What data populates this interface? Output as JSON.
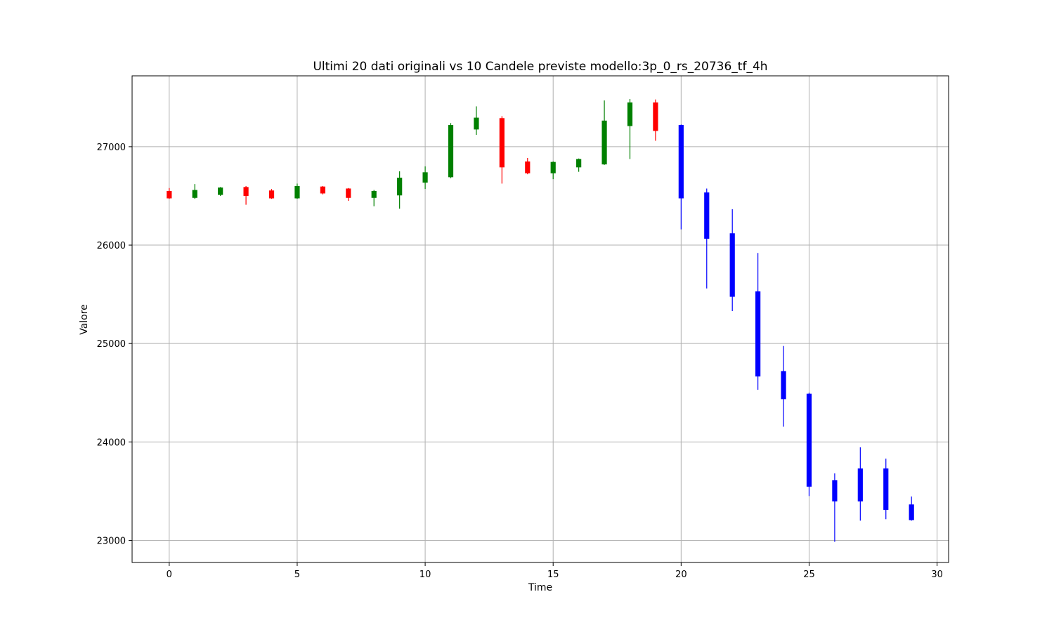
{
  "chart_data": {
    "type": "candlestick",
    "title": "Ultimi 20 dati originali vs 10 Candele previste modello:3p_0_rs_20736_tf_4h",
    "xlabel": "Time",
    "ylabel": "Valore",
    "xlim": [
      -1.45,
      30.45
    ],
    "ylim": [
      22775,
      27720
    ],
    "x_ticks": [
      0,
      5,
      10,
      15,
      20,
      25,
      30
    ],
    "y_ticks": [
      23000,
      24000,
      25000,
      26000,
      27000
    ],
    "grid": true,
    "colors": {
      "up": "#008000",
      "down": "#ff0000",
      "forecast": "#0000ff"
    },
    "candles": [
      {
        "x": 0,
        "open": 26550,
        "high": 26580,
        "low": 26470,
        "close": 26475,
        "series": "original"
      },
      {
        "x": 1,
        "open": 26480,
        "high": 26620,
        "low": 26470,
        "close": 26560,
        "series": "original"
      },
      {
        "x": 2,
        "open": 26510,
        "high": 26590,
        "low": 26500,
        "close": 26585,
        "series": "original"
      },
      {
        "x": 3,
        "open": 26590,
        "high": 26600,
        "low": 26410,
        "close": 26500,
        "series": "original"
      },
      {
        "x": 4,
        "open": 26555,
        "high": 26570,
        "low": 26470,
        "close": 26475,
        "series": "original"
      },
      {
        "x": 5,
        "open": 26475,
        "high": 26625,
        "low": 26470,
        "close": 26600,
        "series": "original"
      },
      {
        "x": 6,
        "open": 26595,
        "high": 26600,
        "low": 26515,
        "close": 26525,
        "series": "original"
      },
      {
        "x": 7,
        "open": 26575,
        "high": 26580,
        "low": 26450,
        "close": 26480,
        "series": "original"
      },
      {
        "x": 8,
        "open": 26480,
        "high": 26560,
        "low": 26395,
        "close": 26550,
        "series": "original"
      },
      {
        "x": 9,
        "open": 26505,
        "high": 26750,
        "low": 26370,
        "close": 26685,
        "series": "original"
      },
      {
        "x": 10,
        "open": 26635,
        "high": 26800,
        "low": 26570,
        "close": 26740,
        "series": "original"
      },
      {
        "x": 11,
        "open": 26690,
        "high": 27240,
        "low": 26680,
        "close": 27220,
        "series": "original"
      },
      {
        "x": 12,
        "open": 27175,
        "high": 27410,
        "low": 27120,
        "close": 27295,
        "series": "original"
      },
      {
        "x": 13,
        "open": 27290,
        "high": 27310,
        "low": 26625,
        "close": 26790,
        "series": "original"
      },
      {
        "x": 14,
        "open": 26850,
        "high": 26885,
        "low": 26720,
        "close": 26730,
        "series": "original"
      },
      {
        "x": 15,
        "open": 26730,
        "high": 26850,
        "low": 26670,
        "close": 26845,
        "series": "original"
      },
      {
        "x": 16,
        "open": 26790,
        "high": 26880,
        "low": 26745,
        "close": 26875,
        "series": "original"
      },
      {
        "x": 17,
        "open": 26820,
        "high": 27470,
        "low": 26815,
        "close": 27265,
        "series": "original"
      },
      {
        "x": 18,
        "open": 27210,
        "high": 27485,
        "low": 26875,
        "close": 27450,
        "series": "original"
      },
      {
        "x": 19,
        "open": 27450,
        "high": 27480,
        "low": 27060,
        "close": 27160,
        "series": "original"
      },
      {
        "x": 20,
        "open": 27220,
        "high": 27225,
        "low": 26160,
        "close": 26475,
        "series": "forecast"
      },
      {
        "x": 21,
        "open": 26535,
        "high": 26575,
        "low": 25560,
        "close": 26065,
        "series": "forecast"
      },
      {
        "x": 22,
        "open": 26120,
        "high": 26365,
        "low": 25330,
        "close": 25475,
        "series": "forecast"
      },
      {
        "x": 23,
        "open": 25530,
        "high": 25920,
        "low": 24530,
        "close": 24665,
        "series": "forecast"
      },
      {
        "x": 24,
        "open": 24720,
        "high": 24975,
        "low": 24155,
        "close": 24435,
        "series": "forecast"
      },
      {
        "x": 25,
        "open": 24490,
        "high": 24500,
        "low": 23450,
        "close": 23545,
        "series": "forecast"
      },
      {
        "x": 26,
        "open": 23610,
        "high": 23680,
        "low": 22985,
        "close": 23395,
        "series": "forecast"
      },
      {
        "x": 27,
        "open": 23730,
        "high": 23945,
        "low": 23200,
        "close": 23395,
        "series": "forecast"
      },
      {
        "x": 28,
        "open": 23730,
        "high": 23830,
        "low": 23215,
        "close": 23310,
        "series": "forecast"
      },
      {
        "x": 29,
        "open": 23365,
        "high": 23445,
        "low": 23200,
        "close": 23205,
        "series": "forecast"
      }
    ]
  }
}
